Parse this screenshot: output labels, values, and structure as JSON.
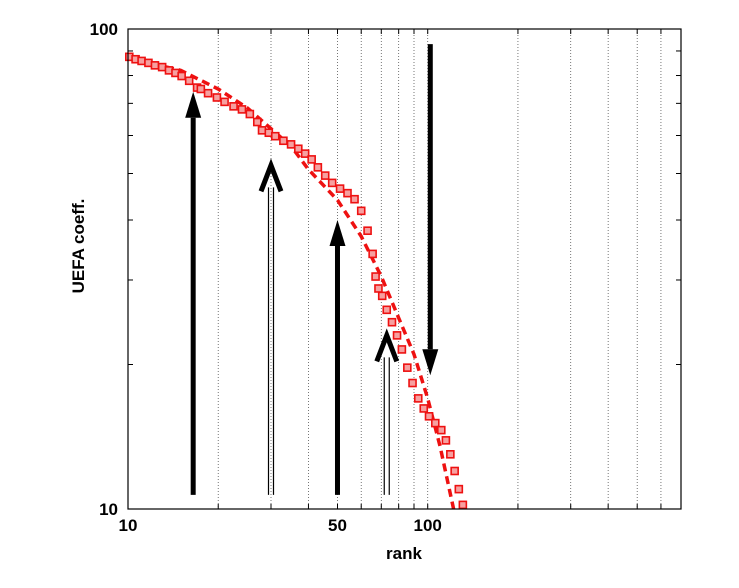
{
  "chart_data": {
    "type": "scatter",
    "xlabel": "rank",
    "ylabel": "UEFA coeff.",
    "xscale": "log",
    "yscale": "log",
    "xlim": [
      10,
      700
    ],
    "ylim": [
      10,
      100
    ],
    "x_tick_labels": [
      {
        "value": 10,
        "label": "10"
      },
      {
        "value": 50,
        "label": "50"
      },
      {
        "value": 100,
        "label": "100"
      }
    ],
    "y_tick_labels": [
      {
        "value": 10,
        "label": "10"
      },
      {
        "value": 100,
        "label": "100"
      }
    ],
    "grid": "vertical",
    "series": [
      {
        "marker": "square",
        "color": "#ee1111",
        "points": [
          [
            10.1,
            87.5
          ],
          [
            10.6,
            86.5
          ],
          [
            11.1,
            85.8
          ],
          [
            11.7,
            85.0
          ],
          [
            12.3,
            84.0
          ],
          [
            13.0,
            83.3
          ],
          [
            13.7,
            82.0
          ],
          [
            14.4,
            81.0
          ],
          [
            15.1,
            79.8
          ],
          [
            16.0,
            78.0
          ],
          [
            17.0,
            75.5
          ],
          [
            17.5,
            75.0
          ],
          [
            18.5,
            73.5
          ],
          [
            19.8,
            72.0
          ],
          [
            21.0,
            70.5
          ],
          [
            22.5,
            69.0
          ],
          [
            24.0,
            68.0
          ],
          [
            25.5,
            66.5
          ],
          [
            27.0,
            64.0
          ],
          [
            28.0,
            61.5
          ],
          [
            29.5,
            60.8
          ],
          [
            31.0,
            59.8
          ],
          [
            33.0,
            58.5
          ],
          [
            35.0,
            57.5
          ],
          [
            37.0,
            56.3
          ],
          [
            39.0,
            55.0
          ],
          [
            41.0,
            53.5
          ],
          [
            43.0,
            51.5
          ],
          [
            45.5,
            49.5
          ],
          [
            48.0,
            47.8
          ],
          [
            51.0,
            46.5
          ],
          [
            54.0,
            45.5
          ],
          [
            57.0,
            44.2
          ],
          [
            60.0,
            41.8
          ],
          [
            63.0,
            38.0
          ],
          [
            65.5,
            34.0
          ],
          [
            67.0,
            30.5
          ],
          [
            68.5,
            28.8
          ],
          [
            70.5,
            27.8
          ],
          [
            73.0,
            26.0
          ],
          [
            76.0,
            24.5
          ],
          [
            79.0,
            23.0
          ],
          [
            82.0,
            21.5
          ],
          [
            85.5,
            19.7
          ],
          [
            89.0,
            18.3
          ],
          [
            93.0,
            17.0
          ],
          [
            97.0,
            16.2
          ],
          [
            101.0,
            15.6
          ],
          [
            106.0,
            15.1
          ],
          [
            111.0,
            14.6
          ],
          [
            115.0,
            13.9
          ],
          [
            119.0,
            13.0
          ],
          [
            123.0,
            12.0
          ],
          [
            127.0,
            11.0
          ],
          [
            131.0,
            10.2
          ]
        ]
      },
      {
        "line_style": "dashed",
        "color": "#ee1111",
        "points": [
          [
            10,
            87
          ],
          [
            15,
            82
          ],
          [
            20,
            75
          ],
          [
            25,
            68.5
          ],
          [
            30,
            62
          ],
          [
            35,
            57
          ],
          [
            40,
            51
          ],
          [
            50,
            44
          ],
          [
            60,
            37
          ],
          [
            70,
            30.5
          ],
          [
            80,
            25
          ],
          [
            90,
            21
          ],
          [
            100,
            17
          ],
          [
            110,
            13.5
          ],
          [
            118,
            11
          ],
          [
            122,
            10
          ]
        ]
      }
    ],
    "annotations": [
      {
        "kind": "arrow-up",
        "style": "solid",
        "x": 16.5,
        "y_from": 10.7,
        "y_to": 74
      },
      {
        "kind": "arrow-up",
        "style": "hollow",
        "x": 30,
        "y_from": 10.7,
        "y_to": 52
      },
      {
        "kind": "arrow-up",
        "style": "solid",
        "x": 50,
        "y_from": 10.7,
        "y_to": 40
      },
      {
        "kind": "arrow-up",
        "style": "hollow",
        "x": 73,
        "y_from": 10.7,
        "y_to": 23
      },
      {
        "kind": "arrow-down",
        "style": "solid",
        "x": 102,
        "y_from": 93,
        "y_to": 19
      }
    ]
  }
}
